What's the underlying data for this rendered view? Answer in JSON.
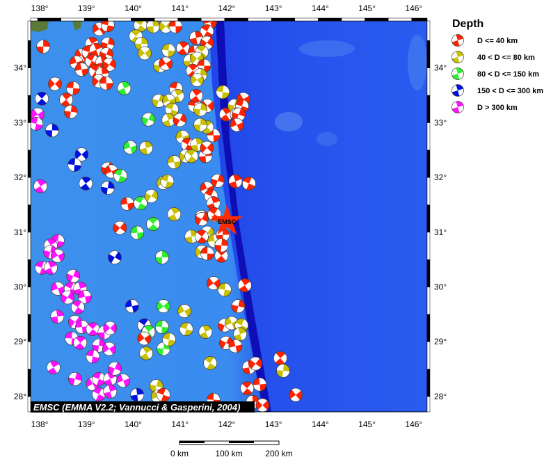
{
  "map": {
    "lon_range": [
      137.85,
      146.33
    ],
    "lat_range": [
      27.72,
      34.86
    ],
    "lon_ticks": [
      138,
      139,
      140,
      141,
      142,
      143,
      144,
      145,
      146
    ],
    "lat_ticks": [
      28,
      29,
      30,
      31,
      32,
      33,
      34
    ],
    "degree_suffix": "°",
    "attribution": "EMSC (EMMA V2.2; Vannucci & Gasperini, 2004)",
    "epicenter": {
      "lon": 142.05,
      "lat": 31.2,
      "label": "EMSC",
      "color": "#ff2a00"
    }
  },
  "legend": {
    "title": "Depth",
    "items": [
      {
        "key": "r",
        "label": "D <= 40 km",
        "color": "#ff2200"
      },
      {
        "key": "y",
        "label": "40 < D <= 80 km",
        "color": "#c8c000"
      },
      {
        "key": "g",
        "label": "80 < D <= 150 km",
        "color": "#2ef02e"
      },
      {
        "key": "b",
        "label": "150 < D <= 300 km",
        "color": "#0010e0"
      },
      {
        "key": "m",
        "label": "D > 300 km",
        "color": "#ff10ff"
      }
    ]
  },
  "scale_bar": {
    "labels": [
      "0 km",
      "100 km",
      "200 km"
    ]
  },
  "events": [
    [
      138.12,
      34.39,
      "r"
    ],
    [
      138.37,
      33.71,
      "r"
    ],
    [
      138.76,
      33.63,
      "r"
    ],
    [
      138.61,
      33.42,
      "r"
    ],
    [
      138.71,
      33.2,
      "r"
    ],
    [
      139.32,
      34.71,
      "r"
    ],
    [
      139.5,
      34.78,
      "r"
    ],
    [
      139.16,
      34.44,
      "r"
    ],
    [
      139.5,
      34.44,
      "r"
    ],
    [
      138.94,
      34.23,
      "r"
    ],
    [
      139.09,
      34.29,
      "r"
    ],
    [
      139.25,
      34.33,
      "r"
    ],
    [
      139.47,
      34.25,
      "r"
    ],
    [
      138.83,
      34.1,
      "r"
    ],
    [
      139.16,
      34.13,
      "r"
    ],
    [
      139.38,
      34.1,
      "r"
    ],
    [
      139.53,
      34.06,
      "r"
    ],
    [
      138.94,
      33.97,
      "r"
    ],
    [
      139.24,
      33.94,
      "r"
    ],
    [
      139.38,
      33.89,
      "r"
    ],
    [
      139.31,
      33.76,
      "r"
    ],
    [
      139.47,
      33.72,
      "r"
    ],
    [
      138.09,
      33.44,
      "b"
    ],
    [
      138.31,
      32.86,
      "b"
    ],
    [
      138.94,
      32.42,
      "b"
    ],
    [
      138.79,
      32.23,
      "b"
    ],
    [
      139.03,
      31.89,
      "b"
    ],
    [
      139.5,
      31.81,
      "b"
    ],
    [
      138.0,
      33.15,
      "m"
    ],
    [
      137.97,
      32.98,
      "m"
    ],
    [
      138.06,
      31.84,
      "m"
    ],
    [
      139.5,
      32.16,
      "r"
    ],
    [
      139.58,
      32.11,
      "r"
    ],
    [
      139.77,
      32.03,
      "g"
    ],
    [
      139.85,
      33.63,
      "g"
    ],
    [
      140.37,
      33.06,
      "g"
    ],
    [
      139.98,
      32.55,
      "g"
    ],
    [
      140.2,
      31.53,
      "g"
    ],
    [
      140.32,
      32.54,
      "y"
    ],
    [
      140.43,
      31.66,
      "y"
    ],
    [
      139.92,
      31.52,
      "r"
    ],
    [
      140.2,
      34.78,
      "y"
    ],
    [
      140.47,
      34.76,
      "y"
    ],
    [
      140.74,
      34.76,
      "y"
    ],
    [
      140.95,
      34.76,
      "r"
    ],
    [
      140.1,
      34.58,
      "y"
    ],
    [
      140.22,
      34.44,
      "y"
    ],
    [
      140.29,
      34.27,
      "y"
    ],
    [
      140.8,
      34.32,
      "y"
    ],
    [
      141.11,
      34.36,
      "r"
    ],
    [
      140.62,
      34.04,
      "y"
    ],
    [
      140.74,
      34.08,
      "r"
    ],
    [
      140.96,
      33.62,
      "r"
    ],
    [
      140.99,
      33.49,
      "y"
    ],
    [
      140.59,
      33.4,
      "y"
    ],
    [
      140.81,
      33.4,
      "y"
    ],
    [
      140.87,
      33.24,
      "y"
    ],
    [
      140.8,
      33.05,
      "y"
    ],
    [
      141.04,
      33.05,
      "r"
    ],
    [
      141.1,
      32.74,
      "y"
    ],
    [
      141.21,
      32.6,
      "r"
    ],
    [
      141.41,
      32.6,
      "y"
    ],
    [
      141.17,
      32.39,
      "y"
    ],
    [
      140.92,
      32.28,
      "y"
    ],
    [
      141.29,
      32.39,
      "y"
    ],
    [
      141.59,
      32.39,
      "r"
    ],
    [
      141.62,
      32.54,
      "r"
    ],
    [
      141.76,
      32.77,
      "r"
    ],
    [
      141.62,
      32.92,
      "y"
    ],
    [
      141.48,
      32.96,
      "y"
    ],
    [
      141.63,
      33.31,
      "r"
    ],
    [
      141.36,
      33.31,
      "r"
    ],
    [
      141.39,
      33.49,
      "r"
    ],
    [
      141.48,
      33.24,
      "y"
    ],
    [
      140.69,
      31.9,
      "y"
    ],
    [
      140.77,
      31.93,
      "y"
    ],
    [
      140.92,
      31.33,
      "y"
    ],
    [
      141.85,
      31.94,
      "r"
    ],
    [
      141.62,
      31.8,
      "r"
    ],
    [
      141.71,
      31.66,
      "r"
    ],
    [
      141.76,
      31.53,
      "r"
    ],
    [
      141.51,
      31.28,
      "r"
    ],
    [
      141.69,
      34.84,
      "r"
    ],
    [
      141.62,
      34.67,
      "r"
    ],
    [
      141.39,
      34.55,
      "r"
    ],
    [
      141.62,
      34.46,
      "r"
    ],
    [
      141.36,
      34.29,
      "r"
    ],
    [
      141.51,
      34.29,
      "y"
    ],
    [
      141.26,
      34.13,
      "y"
    ],
    [
      141.41,
      34.17,
      "y"
    ],
    [
      141.56,
      34.04,
      "r"
    ],
    [
      141.32,
      33.95,
      "r"
    ],
    [
      141.48,
      33.87,
      "y"
    ],
    [
      141.41,
      33.78,
      "y"
    ],
    [
      141.96,
      33.56,
      "y"
    ],
    [
      142.03,
      33.15,
      "r"
    ],
    [
      142.21,
      33.31,
      "y"
    ],
    [
      142.4,
      33.43,
      "r"
    ],
    [
      142.37,
      33.3,
      "r"
    ],
    [
      142.26,
      33.15,
      "r"
    ],
    [
      142.3,
      33.15,
      "r"
    ],
    [
      142.26,
      32.96,
      "r"
    ],
    [
      142.52,
      31.89,
      "r"
    ],
    [
      142.23,
      31.93,
      "r"
    ],
    [
      141.51,
      31.24,
      "r"
    ],
    [
      141.78,
      31.31,
      "y"
    ],
    [
      141.78,
      31.33,
      "r"
    ],
    [
      141.29,
      30.92,
      "y"
    ],
    [
      141.63,
      30.99,
      "y"
    ],
    [
      141.78,
      30.84,
      "y"
    ],
    [
      141.51,
      30.92,
      "r"
    ],
    [
      141.96,
      30.95,
      "r"
    ],
    [
      141.51,
      30.64,
      "y"
    ],
    [
      141.63,
      30.61,
      "r"
    ],
    [
      141.93,
      30.57,
      "r"
    ],
    [
      141.93,
      30.76,
      "r"
    ],
    [
      141.76,
      30.07,
      "r"
    ],
    [
      142.0,
      29.95,
      "y"
    ],
    [
      142.43,
      30.03,
      "r"
    ],
    [
      142.29,
      29.65,
      "r"
    ],
    [
      141.14,
      29.56,
      "y"
    ],
    [
      141.18,
      29.23,
      "y"
    ],
    [
      141.59,
      29.18,
      "y"
    ],
    [
      142.0,
      29.3,
      "r"
    ],
    [
      142.15,
      29.34,
      "y"
    ],
    [
      142.36,
      29.3,
      "y"
    ],
    [
      142.33,
      29.14,
      "y"
    ],
    [
      142.03,
      28.98,
      "r"
    ],
    [
      142.23,
      28.92,
      "r"
    ],
    [
      141.69,
      28.61,
      "y"
    ],
    [
      142.52,
      28.53,
      "r"
    ],
    [
      142.66,
      28.6,
      "r"
    ],
    [
      142.75,
      28.22,
      "r"
    ],
    [
      142.48,
      28.15,
      "r"
    ],
    [
      142.6,
      27.9,
      "r"
    ],
    [
      142.81,
      27.84,
      "r"
    ],
    [
      141.76,
      27.94,
      "r"
    ],
    [
      143.19,
      28.7,
      "r"
    ],
    [
      143.25,
      28.47,
      "y"
    ],
    [
      143.52,
      28.03,
      "r"
    ],
    [
      138.43,
      30.84,
      "m"
    ],
    [
      138.28,
      30.76,
      "m"
    ],
    [
      138.27,
      30.64,
      "m"
    ],
    [
      138.43,
      30.57,
      "m"
    ],
    [
      138.09,
      30.35,
      "m"
    ],
    [
      138.28,
      30.35,
      "m"
    ],
    [
      138.76,
      30.2,
      "m"
    ],
    [
      138.43,
      29.97,
      "m"
    ],
    [
      138.71,
      29.97,
      "m"
    ],
    [
      138.91,
      29.97,
      "m"
    ],
    [
      138.64,
      29.81,
      "m"
    ],
    [
      139.01,
      29.82,
      "m"
    ],
    [
      138.86,
      29.63,
      "m"
    ],
    [
      138.42,
      29.46,
      "m"
    ],
    [
      138.8,
      29.36,
      "m"
    ],
    [
      138.95,
      29.27,
      "m"
    ],
    [
      139.18,
      29.23,
      "m"
    ],
    [
      139.43,
      29.17,
      "m"
    ],
    [
      139.55,
      29.25,
      "m"
    ],
    [
      138.73,
      29.06,
      "m"
    ],
    [
      138.91,
      28.98,
      "m"
    ],
    [
      139.31,
      28.93,
      "m"
    ],
    [
      139.53,
      28.87,
      "m"
    ],
    [
      139.18,
      28.73,
      "m"
    ],
    [
      138.34,
      28.53,
      "m"
    ],
    [
      138.8,
      28.32,
      "m"
    ],
    [
      139.18,
      28.23,
      "m"
    ],
    [
      139.31,
      28.32,
      "m"
    ],
    [
      139.55,
      28.32,
      "m"
    ],
    [
      139.65,
      28.51,
      "m"
    ],
    [
      139.83,
      28.29,
      "m"
    ],
    [
      139.31,
      28.04,
      "m"
    ],
    [
      139.55,
      28.09,
      "m"
    ],
    [
      139.65,
      30.54,
      "b"
    ],
    [
      140.02,
      29.65,
      "b"
    ],
    [
      140.28,
      29.3,
      "b"
    ],
    [
      140.13,
      28.03,
      "b"
    ],
    [
      139.76,
      31.08,
      "r"
    ],
    [
      140.13,
      30.99,
      "g"
    ],
    [
      140.47,
      31.15,
      "g"
    ],
    [
      140.66,
      30.54,
      "g"
    ],
    [
      140.69,
      29.65,
      "g"
    ],
    [
      140.66,
      29.27,
      "g"
    ],
    [
      140.37,
      29.18,
      "g"
    ],
    [
      140.69,
      28.87,
      "g"
    ],
    [
      140.28,
      29.06,
      "r"
    ],
    [
      140.81,
      29.04,
      "y"
    ],
    [
      140.32,
      28.79,
      "y"
    ],
    [
      140.54,
      28.19,
      "y"
    ],
    [
      140.57,
      28.0,
      "y"
    ],
    [
      140.69,
      28.03,
      "r"
    ]
  ]
}
